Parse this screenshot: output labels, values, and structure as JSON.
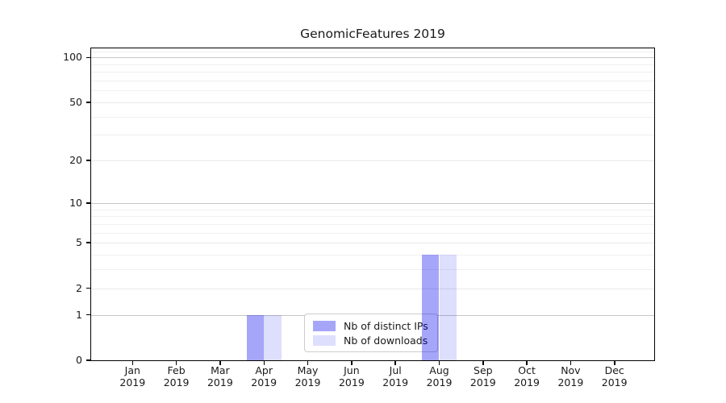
{
  "title": "GenomicFeatures 2019",
  "chart_data": {
    "type": "bar",
    "title": "GenomicFeatures 2019",
    "x_ticks": [
      {
        "month": "Jan",
        "year": "2019"
      },
      {
        "month": "Feb",
        "year": "2019"
      },
      {
        "month": "Mar",
        "year": "2019"
      },
      {
        "month": "Apr",
        "year": "2019"
      },
      {
        "month": "May",
        "year": "2019"
      },
      {
        "month": "Jun",
        "year": "2019"
      },
      {
        "month": "Jul",
        "year": "2019"
      },
      {
        "month": "Aug",
        "year": "2019"
      },
      {
        "month": "Sep",
        "year": "2019"
      },
      {
        "month": "Oct",
        "year": "2019"
      },
      {
        "month": "Nov",
        "year": "2019"
      },
      {
        "month": "Dec",
        "year": "2019"
      }
    ],
    "series": [
      {
        "name": "Nb of distinct IPs",
        "color": "rgba(0,0,238,0.35)",
        "values": [
          0,
          0,
          0,
          1,
          0,
          0,
          0,
          4,
          0,
          0,
          0,
          0
        ]
      },
      {
        "name": "Nb of downloads",
        "color": "rgba(0,0,238,0.13)",
        "values": [
          0,
          0,
          0,
          1,
          0,
          0,
          0,
          4,
          0,
          0,
          0,
          0
        ]
      }
    ],
    "y_axis": {
      "scale": "log1p",
      "ylim": [
        0,
        115
      ],
      "major_ticks": [
        0,
        1,
        2,
        5,
        10,
        20,
        50,
        100
      ],
      "decade_ticks": [
        1,
        10,
        100
      ],
      "minor_ticks": [
        3,
        4,
        6,
        7,
        8,
        9,
        30,
        40,
        60,
        70,
        80,
        90,
        110
      ]
    },
    "grid": true,
    "legend_position": "inside-bottom-center"
  },
  "colors": {
    "background": "#ffffff",
    "spine": "#000000",
    "text": "#1a1a1a",
    "grid_decade": "#c6c6c6",
    "grid_major": "#e9e9e9",
    "grid_minor": "#f0f0f0",
    "bar_ips": "rgba(0,0,238,0.35)",
    "bar_downloads": "rgba(0,0,238,0.13)",
    "legend_border": "#cccccc"
  }
}
